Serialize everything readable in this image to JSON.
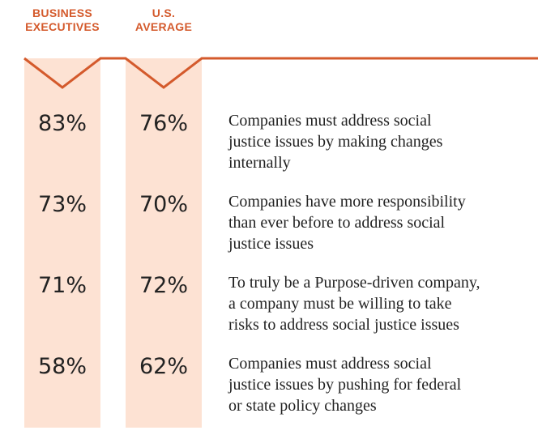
{
  "colors": {
    "accent": "#d45a2c",
    "column_fill": "#fde2d3",
    "text": "#222222"
  },
  "chart_data": {
    "type": "table",
    "columns": [
      {
        "header_lines": [
          "BUSINESS",
          "EXECUTIVES"
        ]
      },
      {
        "header_lines": [
          "U.S.",
          "AVERAGE"
        ]
      }
    ],
    "rows": [
      {
        "statement_lines": [
          "Companies must address social",
          "justice issues by making changes",
          "internally"
        ],
        "values": [
          "83%",
          "76%"
        ]
      },
      {
        "statement_lines": [
          "Companies have more responsibility",
          "than ever before to address social",
          "justice issues"
        ],
        "values": [
          "73%",
          "70%"
        ]
      },
      {
        "statement_lines": [
          "To truly be a Purpose-driven company,",
          "a company must be willing to take",
          "risks to address social justice issues"
        ],
        "values": [
          "71%",
          "72%"
        ]
      },
      {
        "statement_lines": [
          "Companies must address social",
          "justice issues by pushing for federal",
          "or state policy changes"
        ],
        "values": [
          "58%",
          "62%"
        ]
      }
    ]
  }
}
